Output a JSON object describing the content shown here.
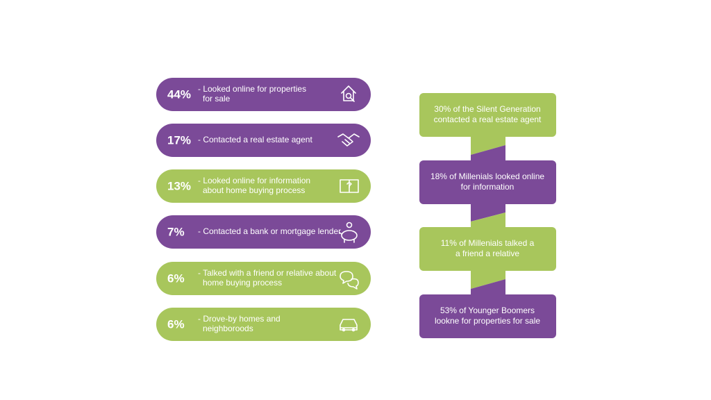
{
  "left_items": [
    {
      "percent": "44%",
      "lines": [
        "- Looked online for properties",
        "for sale"
      ],
      "color": "#7b4a98"
    },
    {
      "percent": "17%",
      "lines": [
        "- Contacted a real estate agent"
      ],
      "color": "#7b4a98"
    },
    {
      "percent": "13%",
      "lines": [
        "- Looked online for information",
        "about home buying process"
      ],
      "color": "#a8c65c"
    },
    {
      "percent": "7%",
      "lines": [
        "- Contacted a bank or mortgage lender"
      ],
      "color": "#7b4a98"
    },
    {
      "percent": "6%",
      "lines": [
        "- Talked with a friend or relative about",
        "home buying process"
      ],
      "color": "#a8c65c"
    },
    {
      "percent": "6%",
      "lines": [
        "- Drove-by homes and",
        "neighboroods"
      ],
      "color": "#a8c65c"
    }
  ],
  "right_blocks": [
    {
      "lines": [
        "30% of the Silent Generation",
        "contacted a real estate agent"
      ],
      "color": "#a8c65c"
    },
    {
      "lines": [
        "18% of Millenials looked online",
        "for information"
      ],
      "color": "#7b4a98"
    },
    {
      "lines": [
        "11% of Millenials talked a",
        "a friend a relative"
      ],
      "color": "#a8c65c"
    },
    {
      "lines": [
        "53% of Younger Boomers",
        "lookne for properties for sale"
      ],
      "color": "#7b4a98"
    }
  ]
}
